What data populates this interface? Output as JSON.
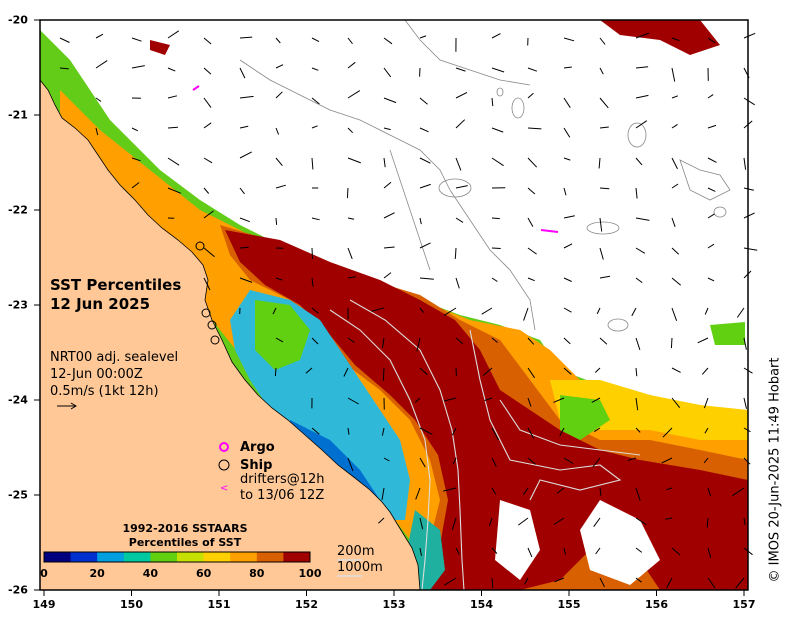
{
  "title": {
    "line1": "SST Percentiles",
    "line2": "12 Jun 2025"
  },
  "currents": {
    "line1": "NRT00 adj. sealevel",
    "line2": "12-Jun 00:00Z",
    "line3": "0.5m/s (1kt 12h)"
  },
  "legend": {
    "argo": {
      "label": "Argo",
      "color": "#ff00ff"
    },
    "ship": {
      "label": "Ship",
      "color": "#000000"
    },
    "drifters": {
      "label_line1": "drifters@12h",
      "label_line2": "to 13/06 12Z",
      "color": "#ff00ff"
    }
  },
  "colorbar": {
    "title_line1": "1992-2016 SSTAARS",
    "title_line2": "Percentiles of SST",
    "ticks": [
      "0",
      "20",
      "40",
      "60",
      "80",
      "100"
    ],
    "colors": [
      "#00007f",
      "#0030d0",
      "#009fe0",
      "#00c8a0",
      "#60d010",
      "#c8e000",
      "#ffd000",
      "#ffa000",
      "#d86000",
      "#a00000"
    ]
  },
  "isobaths": {
    "label1": "200m",
    "label2": "1000m"
  },
  "axes": {
    "lon_ticks": [
      "149",
      "150",
      "151",
      "152",
      "153",
      "154",
      "155",
      "156",
      "157"
    ],
    "lat_ticks": [
      "-20",
      "-21",
      "-22",
      "-23",
      "-24",
      "-25",
      "-26"
    ]
  },
  "credit": "© IMOS 20-Jun-2025 11:49 Hobart",
  "colors": {
    "land": "#ffc896",
    "frame": "#000000"
  }
}
